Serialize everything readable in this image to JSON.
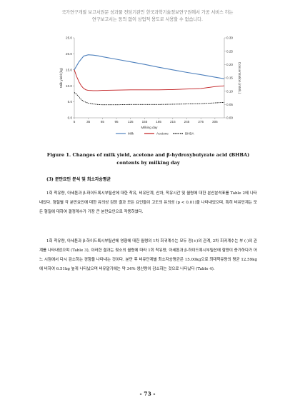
{
  "watermark": {
    "line1": "국가연구개발 보고서원문 성과물 전담기관인 한국과학기술정보연구원에서 가공 서비스 하는",
    "line2": "연구보고서는 동의 없이 상업적 용도로 사용할 수 없습니다."
  },
  "chart_data": {
    "type": "line",
    "xlabel": "Milking day",
    "ylabel_left": "Milk yield (kg)",
    "ylabel_right": "Concentration (mM/L)",
    "x_ticks": [
      5,
      35,
      65,
      95,
      125,
      155,
      185,
      215,
      245,
      275,
      305
    ],
    "y_left_ticks": [
      "0.0",
      "5.0",
      "10.0",
      "15.0",
      "20.0",
      "25.0"
    ],
    "y_right_ticks": [
      "0.00",
      "0.05",
      "0.10",
      "0.15",
      "0.20",
      "0.25",
      "0.30"
    ],
    "ylim_left": [
      0,
      25
    ],
    "ylim_right": [
      0,
      0.3
    ],
    "xlim": [
      5,
      325
    ],
    "legend_position": "bottom",
    "series": [
      {
        "name": "Milk",
        "axis": "left",
        "color": "#4f81bd",
        "x": [
          5,
          15,
          25,
          35,
          45,
          55,
          65,
          95,
          125,
          155,
          185,
          215,
          245,
          275,
          305,
          325
        ],
        "y": [
          15.0,
          17.5,
          19.3,
          19.7,
          19.6,
          19.4,
          19.1,
          18.3,
          17.5,
          16.7,
          15.8,
          15.0,
          14.2,
          13.5,
          12.7,
          12.2
        ]
      },
      {
        "name": "Acetone",
        "axis": "right",
        "color": "#c0191c",
        "x": [
          5,
          10,
          15,
          20,
          25,
          30,
          35,
          45,
          55,
          65,
          95,
          125,
          155,
          185,
          215,
          245,
          275,
          305,
          325
        ],
        "y": [
          0.18,
          0.155,
          0.135,
          0.12,
          0.11,
          0.105,
          0.103,
          0.102,
          0.102,
          0.103,
          0.104,
          0.105,
          0.105,
          0.105,
          0.106,
          0.108,
          0.11,
          0.117,
          0.12
        ]
      },
      {
        "name": "BHBA",
        "axis": "right",
        "color": "#000000",
        "x": [
          5,
          10,
          15,
          20,
          25,
          30,
          35,
          45,
          55,
          65,
          95,
          125,
          155,
          185,
          215,
          245,
          275,
          305,
          325
        ],
        "y": [
          0.095,
          0.088,
          0.078,
          0.068,
          0.062,
          0.058,
          0.055,
          0.052,
          0.05,
          0.049,
          0.049,
          0.05,
          0.05,
          0.05,
          0.051,
          0.052,
          0.053,
          0.056,
          0.058
        ]
      }
    ]
  },
  "caption": "Figure 1. Changes of milk yield, acetone and β-hydroxybutyrate acid (BHBA) contents by milking day",
  "section_heading": "(3) 분만요인 분석 및 최소자승평균",
  "paragraphs": [
    "1회 착유량, 아세톤과 β-하이드록시부틸산에 대한 착유, 비유단계, 산차, 착유시간 및 월령에 대한 분산분석표를 Table 2에 나타내었다. 형질별 각 분만요인에 대한 유의성 검정 결과 모든 요인들이 고도의 유의성 (p < 0.01)을 나타내었으며, 특히 비유단계는 모든 형질에 대하여 결정계수가 가장 큰 분만요인으로 작용하였다.",
    "1회 착유량, 아세톤과 β-하이드록시부틸산에 영향에 대한 월령의 1차 회귀계수는 모두 정(+)의 관계, 2차 회귀계수는 부 (-)의 관계를 나타내었으며 (Table 3), 이러한 결과는 젖소의 월령에 따라 1회 착유량, 아세톤과 β-하이드록시부틸산에 함량이 증가하다가 어느 시점에서 다시 감소하는 경향을 나타내는 것이다. 분만 후 비유단계별 최소자승평균은 15.00kg으로 최대착유량의 평균 12.59kg에 비하여 6.51kg 높게 나타났으며 비유말기에는 약 34% 생산량이 감소하는 것으로 나타났다 (Table 4)."
  ],
  "page_number": "- 73 -"
}
